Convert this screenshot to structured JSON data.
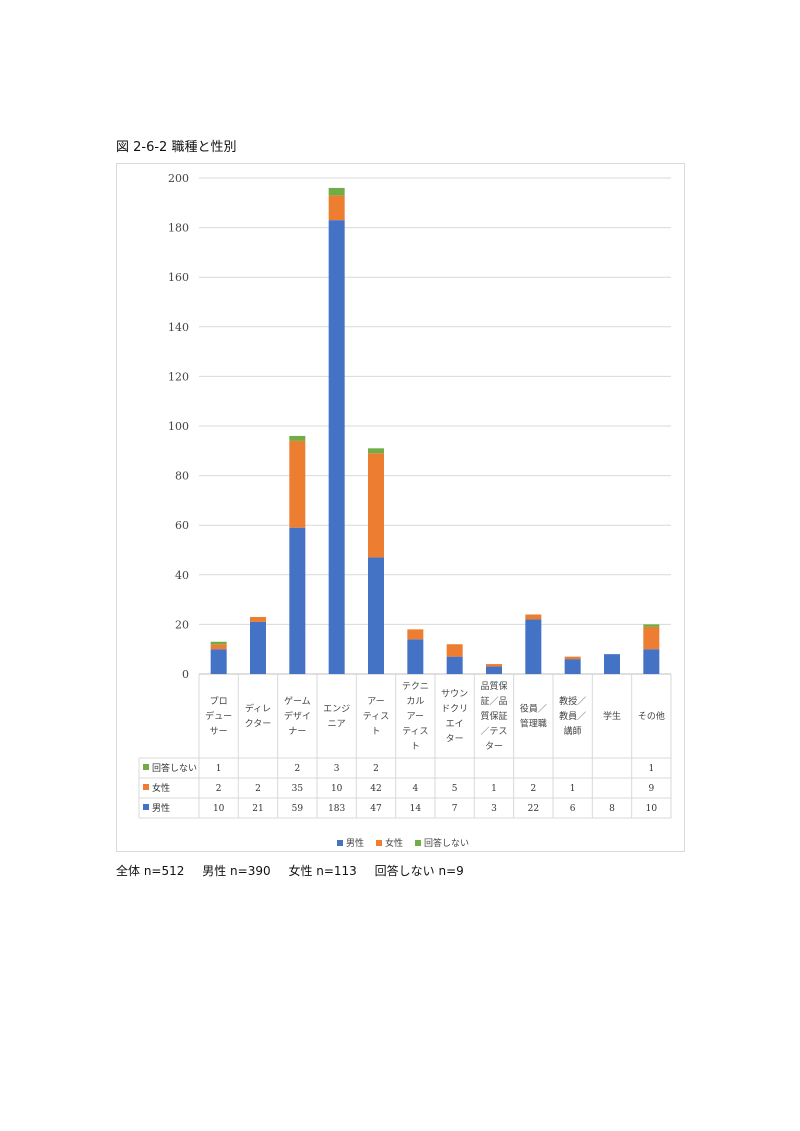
{
  "figure": {
    "title": "図 2-6-2 職種と性別"
  },
  "summary": {
    "total": "全体 n=512",
    "male": "男性 n=390",
    "female": "女性 n=113",
    "no_answer": "回答しない n=9"
  },
  "chart_data": {
    "type": "bar",
    "stacked": true,
    "title": "",
    "xlabel": "",
    "ylabel": "",
    "ylim": [
      0,
      200
    ],
    "yticks": [
      0,
      20,
      40,
      60,
      80,
      100,
      120,
      140,
      160,
      180,
      200
    ],
    "grid": true,
    "legend": "bottom",
    "data_table": true,
    "categories": [
      [
        "プロ",
        "デュー",
        "サー"
      ],
      [
        "ディレ",
        "クター"
      ],
      [
        "ゲーム",
        "デザイ",
        "ナー"
      ],
      [
        "エンジ",
        "ニア"
      ],
      [
        "アー",
        "ティス",
        "ト"
      ],
      [
        "テクニ",
        "カル",
        "アー",
        "ティス",
        "ト"
      ],
      [
        "サウン",
        "ドクリ",
        "エイ",
        "ター"
      ],
      [
        "品質保",
        "証／品",
        "質保証",
        "／テス",
        "ター"
      ],
      [
        "役員／",
        "管理職"
      ],
      [
        "教授／",
        "教員／",
        "講師"
      ],
      [
        "学生"
      ],
      [
        "その他"
      ]
    ],
    "series": [
      {
        "name": "男性",
        "color": "#4472c4",
        "values": [
          10,
          21,
          59,
          183,
          47,
          14,
          7,
          3,
          22,
          6,
          8,
          10
        ]
      },
      {
        "name": "女性",
        "color": "#ed7d31",
        "values": [
          2,
          2,
          35,
          10,
          42,
          4,
          5,
          1,
          2,
          1,
          null,
          9
        ]
      },
      {
        "name": "回答しない",
        "color": "#70ad47",
        "values": [
          1,
          null,
          2,
          3,
          2,
          null,
          null,
          null,
          null,
          null,
          null,
          1
        ]
      }
    ]
  }
}
